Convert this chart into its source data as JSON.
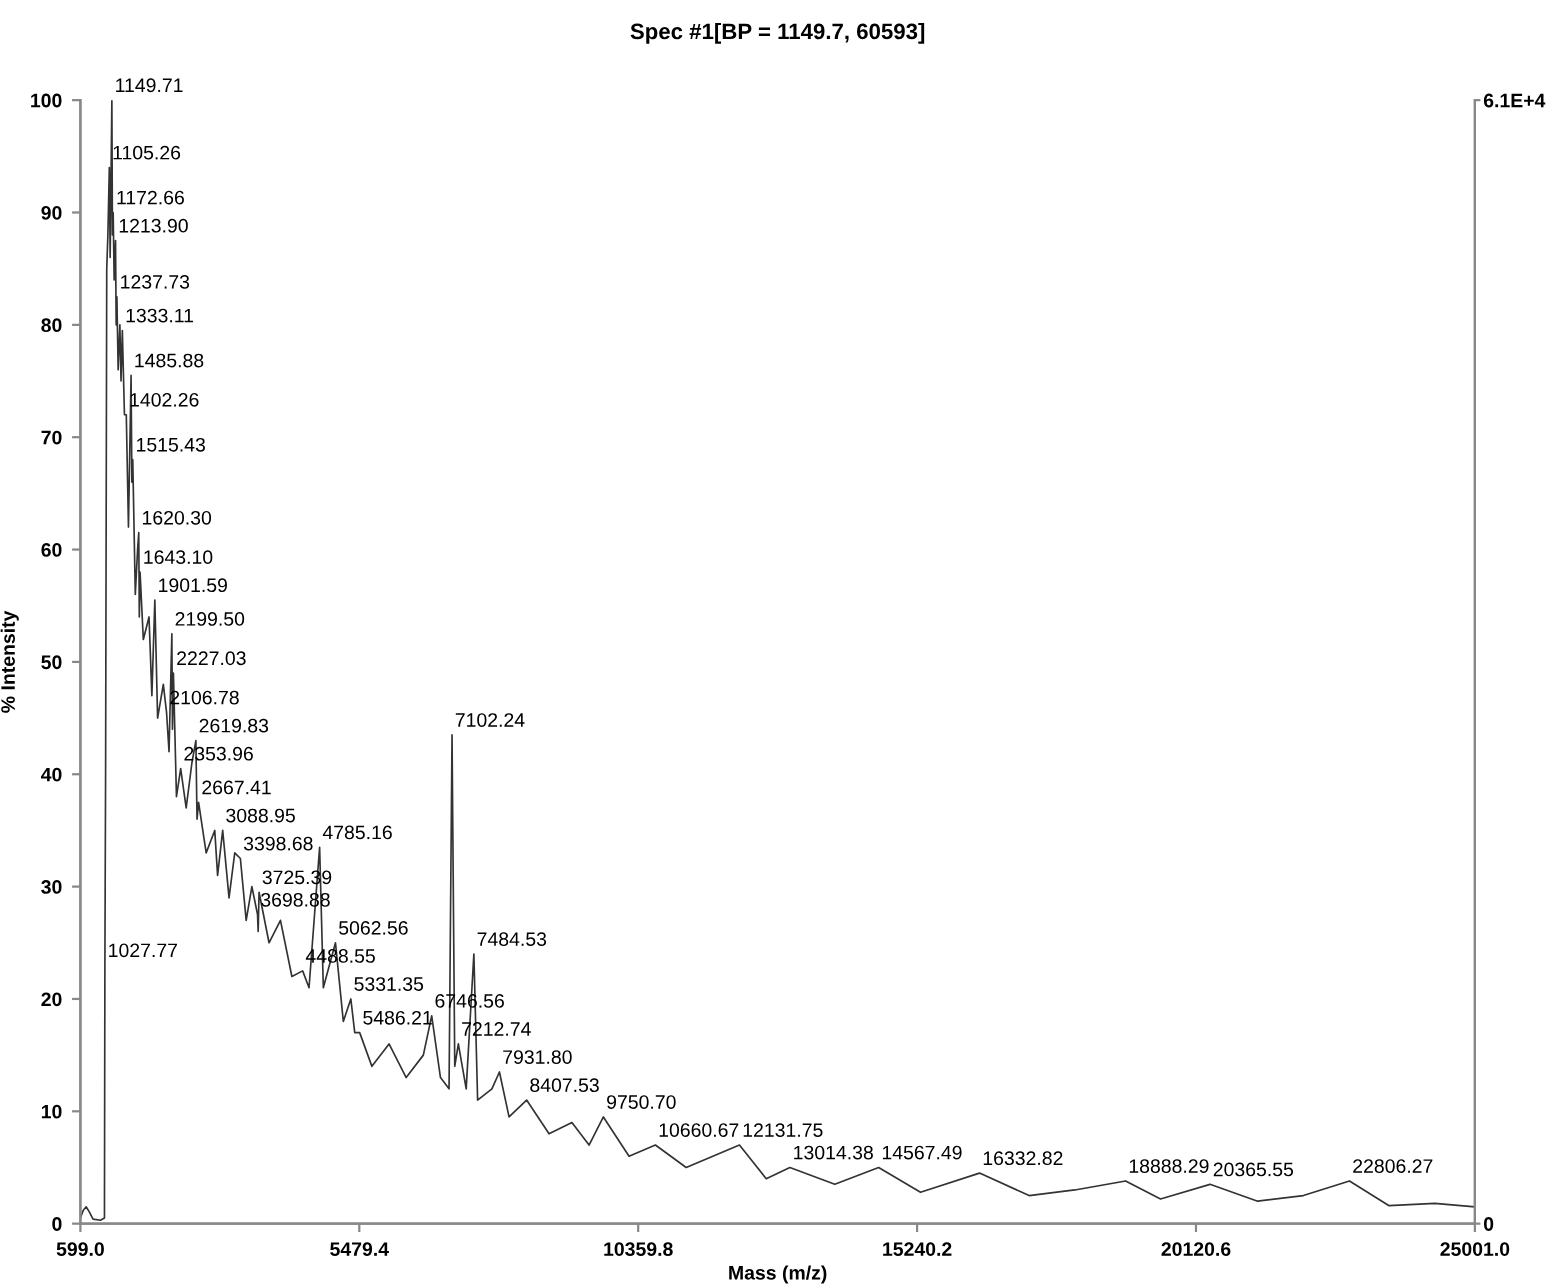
{
  "chart_data": {
    "type": "line",
    "title": "Spec #1[BP = 1149.7, 60593]",
    "xlabel": "Mass (m/z)",
    "ylabel": "% Intensity",
    "xlim": [
      599.0,
      25001.0
    ],
    "xticks": [
      {
        "value": 599.0,
        "label": "599.0"
      },
      5479.4,
      10359.8,
      15240.2,
      20120.6,
      {
        "value": 25001.0,
        "label": "25001.0"
      }
    ],
    "ylim": [
      0,
      100
    ],
    "yticks": [
      0,
      10,
      20,
      30,
      40,
      50,
      60,
      70,
      80,
      90,
      100
    ],
    "y2lim": [
      0,
      61000
    ],
    "y2ticks": [
      0,
      {
        "value": 61000,
        "label": "6.1E+4"
      }
    ],
    "grid": false,
    "marker": "none",
    "line_style": "solid",
    "series": [
      {
        "color": "#333333",
        "x": [
          599,
          650,
          700,
          760,
          820,
          950,
          1020,
          1027.77,
          1040,
          1060,
          1080,
          1105.26,
          1120,
          1149.71,
          1160,
          1172.66,
          1190,
          1213.9,
          1225,
          1237.73,
          1260,
          1290,
          1310,
          1333.11,
          1370,
          1402.26,
          1440,
          1485.88,
          1500,
          1515.43,
          1560,
          1600,
          1620.3,
          1630,
          1643.1,
          1700,
          1800,
          1850,
          1901.59,
          1950,
          2050,
          2106.78,
          2150,
          2199.5,
          2210,
          2227.03,
          2280,
          2353.96,
          2450,
          2550,
          2619.83,
          2640,
          2667.41,
          2800,
          2950,
          3000,
          3088.95,
          3200,
          3300,
          3398.68,
          3500,
          3600,
          3698.88,
          3710,
          3725.39,
          3900,
          4100,
          4300,
          4488.55,
          4600,
          4785.16,
          4850,
          5062.56,
          5200,
          5331.35,
          5400,
          5486.21,
          5700,
          6000,
          6300,
          6600,
          6746.56,
          6900,
          7050,
          7102.24,
          7150,
          7212.74,
          7350,
          7484.53,
          7550,
          7800,
          7931.8,
          8100,
          8407.53,
          8800,
          9200,
          9500,
          9750.7,
          10200,
          10660.67,
          11200,
          12131.75,
          12600,
          13014.38,
          13800,
          14567.49,
          15300,
          16332.82,
          17200,
          18000,
          18888.29,
          19500,
          20365.55,
          21200,
          22000,
          22806.27,
          23500,
          24300,
          25001
        ],
        "values": [
          0.5,
          1.2,
          1.5,
          1.0,
          0.4,
          0.3,
          0.5,
          23,
          40,
          85,
          88,
          94,
          86,
          100,
          88,
          90,
          84,
          87.5,
          80,
          82.5,
          76,
          80,
          75,
          79.5,
          72,
          72,
          62,
          75.5,
          66,
          68,
          56,
          60,
          61.5,
          54,
          58,
          52,
          54,
          47,
          55.5,
          45,
          48,
          45.5,
          42,
          52.5,
          44,
          49,
          38,
          40.5,
          37,
          41,
          43,
          36,
          37.5,
          33,
          35,
          31,
          35,
          29,
          33,
          32.5,
          27,
          30,
          27.5,
          26,
          29.5,
          25,
          27,
          22,
          22.5,
          21,
          33.5,
          21,
          25,
          18,
          20,
          17,
          17,
          14,
          16,
          13,
          15,
          18.5,
          13,
          12,
          43.5,
          14,
          16,
          12,
          24,
          11,
          12,
          13.5,
          9.5,
          11,
          8,
          9,
          7,
          9.5,
          6,
          7,
          5,
          7,
          4,
          5,
          3.5,
          5,
          2.8,
          4.5,
          2.5,
          3,
          3.8,
          2.2,
          3.5,
          2,
          2.5,
          3.8,
          1.6,
          1.8,
          1.5
        ]
      }
    ],
    "annotations": [
      {
        "text": "1149.71",
        "x": 1149.71,
        "y": 100
      },
      {
        "text": "1105.26",
        "x": 1105.26,
        "y": 94
      },
      {
        "text": "1172.66",
        "x": 1172.66,
        "y": 90
      },
      {
        "text": "1213.90",
        "x": 1213.9,
        "y": 87.5
      },
      {
        "text": "1237.73",
        "x": 1237.73,
        "y": 82.5
      },
      {
        "text": "1333.11",
        "x": 1333.11,
        "y": 79.5
      },
      {
        "text": "1485.88",
        "x": 1485.88,
        "y": 75.5
      },
      {
        "text": "1402.26",
        "x": 1402.26,
        "y": 72
      },
      {
        "text": "1515.43",
        "x": 1515.43,
        "y": 68
      },
      {
        "text": "1620.30",
        "x": 1620.3,
        "y": 61.5
      },
      {
        "text": "1643.10",
        "x": 1643.1,
        "y": 58
      },
      {
        "text": "1901.59",
        "x": 1901.59,
        "y": 55.5
      },
      {
        "text": "2199.50",
        "x": 2199.5,
        "y": 52.5
      },
      {
        "text": "2227.03",
        "x": 2227.03,
        "y": 49
      },
      {
        "text": "2106.78",
        "x": 2106.78,
        "y": 45.5
      },
      {
        "text": "2619.83",
        "x": 2619.83,
        "y": 43
      },
      {
        "text": "2353.96",
        "x": 2353.96,
        "y": 40.5
      },
      {
        "text": "2667.41",
        "x": 2667.41,
        "y": 37.5
      },
      {
        "text": "3088.95",
        "x": 3088.95,
        "y": 35
      },
      {
        "text": "3398.68",
        "x": 3398.68,
        "y": 32.5
      },
      {
        "text": "4785.16",
        "x": 4785.16,
        "y": 33.5
      },
      {
        "text": "3725.39",
        "x": 3725.39,
        "y": 29.5
      },
      {
        "text": "3698.88",
        "x": 3698.88,
        "y": 27.5
      },
      {
        "text": "5062.56",
        "x": 5062.56,
        "y": 25
      },
      {
        "text": "1027.77",
        "x": 1027.77,
        "y": 23
      },
      {
        "text": "4488.55",
        "x": 4488.55,
        "y": 22.5
      },
      {
        "text": "5331.35",
        "x": 5331.35,
        "y": 20
      },
      {
        "text": "6746.56",
        "x": 6746.56,
        "y": 18.5
      },
      {
        "text": "5486.21",
        "x": 5486.21,
        "y": 17
      },
      {
        "text": "7102.24",
        "x": 7102.24,
        "y": 43.5
      },
      {
        "text": "7484.53",
        "x": 7484.53,
        "y": 24
      },
      {
        "text": "7212.74",
        "x": 7212.74,
        "y": 16
      },
      {
        "text": "7931.80",
        "x": 7931.8,
        "y": 13.5
      },
      {
        "text": "8407.53",
        "x": 8407.53,
        "y": 11
      },
      {
        "text": "9750.70",
        "x": 9750.7,
        "y": 9.5
      },
      {
        "text": "10660.67",
        "x": 10660.67,
        "y": 7
      },
      {
        "text": "12131.75",
        "x": 12131.75,
        "y": 7
      },
      {
        "text": "13014.38",
        "x": 13014.38,
        "y": 5
      },
      {
        "text": "14567.49",
        "x": 14567.49,
        "y": 5
      },
      {
        "text": "16332.82",
        "x": 16332.82,
        "y": 4.5
      },
      {
        "text": "18888.29",
        "x": 18888.29,
        "y": 3.8
      },
      {
        "text": "20365.55",
        "x": 20365.55,
        "y": 3.5
      },
      {
        "text": "22806.27",
        "x": 22806.27,
        "y": 3.8
      }
    ]
  }
}
